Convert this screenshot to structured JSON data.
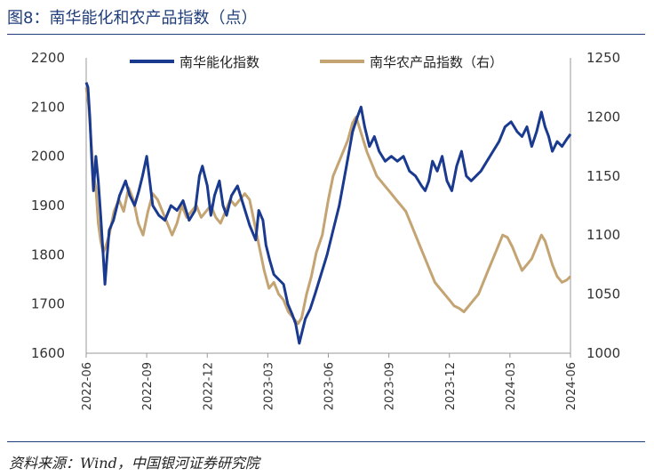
{
  "header": {
    "title": "图8：南华能化和农产品指数（点）"
  },
  "footer": {
    "source": "资料来源：Wind，中国银河证券研究院"
  },
  "colors": {
    "energy": "#1a3a8f",
    "agri": "#c4a473",
    "rule": "#1f3d7a"
  },
  "chart_data": {
    "type": "line",
    "title": "图8：南华能化和农产品指数（点）",
    "x_ticks": [
      "2022-06",
      "2022-09",
      "2022-12",
      "2023-03",
      "2023-06",
      "2023-09",
      "2023-12",
      "2024-03",
      "2024-06"
    ],
    "y_left": {
      "min": 1600,
      "max": 2200,
      "ticks": [
        "2200",
        "2100",
        "2000",
        "1900",
        "1800",
        "1700",
        "1600"
      ]
    },
    "y_right": {
      "min": 1000,
      "max": 1250,
      "ticks": [
        "1250",
        "1200",
        "1150",
        "1100",
        "1050",
        "1000"
      ]
    },
    "legend": [
      "南华能化指数",
      "南华农产品指数（右）"
    ],
    "series": [
      {
        "name": "南华能化指数",
        "axis": "left",
        "points": [
          [
            0,
            2150
          ],
          [
            0.03,
            2140
          ],
          [
            0.06,
            2080
          ],
          [
            0.09,
            2000
          ],
          [
            0.12,
            1930
          ],
          [
            0.16,
            2000
          ],
          [
            0.2,
            1950
          ],
          [
            0.24,
            1880
          ],
          [
            0.28,
            1800
          ],
          [
            0.31,
            1740
          ],
          [
            0.34,
            1790
          ],
          [
            0.38,
            1850
          ],
          [
            0.45,
            1870
          ],
          [
            0.55,
            1920
          ],
          [
            0.65,
            1950
          ],
          [
            0.72,
            1920
          ],
          [
            0.8,
            1900
          ],
          [
            0.87,
            1930
          ],
          [
            0.93,
            1960
          ],
          [
            1.0,
            2000
          ],
          [
            1.05,
            1950
          ],
          [
            1.1,
            1900
          ],
          [
            1.2,
            1880
          ],
          [
            1.3,
            1870
          ],
          [
            1.4,
            1900
          ],
          [
            1.5,
            1890
          ],
          [
            1.6,
            1910
          ],
          [
            1.7,
            1870
          ],
          [
            1.8,
            1890
          ],
          [
            1.87,
            1960
          ],
          [
            1.92,
            1980
          ],
          [
            1.96,
            1960
          ],
          [
            2.0,
            1940
          ],
          [
            2.06,
            1880
          ],
          [
            2.12,
            1920
          ],
          [
            2.2,
            1950
          ],
          [
            2.26,
            1900
          ],
          [
            2.32,
            1880
          ],
          [
            2.4,
            1920
          ],
          [
            2.5,
            1940
          ],
          [
            2.6,
            1900
          ],
          [
            2.7,
            1860
          ],
          [
            2.8,
            1830
          ],
          [
            2.85,
            1890
          ],
          [
            2.92,
            1870
          ],
          [
            2.97,
            1820
          ],
          [
            3.03,
            1790
          ],
          [
            3.1,
            1760
          ],
          [
            3.18,
            1750
          ],
          [
            3.26,
            1740
          ],
          [
            3.33,
            1700
          ],
          [
            3.4,
            1680
          ],
          [
            3.46,
            1660
          ],
          [
            3.52,
            1620
          ],
          [
            3.56,
            1640
          ],
          [
            3.62,
            1670
          ],
          [
            3.7,
            1690
          ],
          [
            3.78,
            1720
          ],
          [
            3.88,
            1760
          ],
          [
            3.98,
            1800
          ],
          [
            4.08,
            1850
          ],
          [
            4.18,
            1900
          ],
          [
            4.3,
            1980
          ],
          [
            4.4,
            2050
          ],
          [
            4.48,
            2080
          ],
          [
            4.54,
            2100
          ],
          [
            4.6,
            2060
          ],
          [
            4.68,
            2020
          ],
          [
            4.76,
            2040
          ],
          [
            4.84,
            2010
          ],
          [
            4.94,
            1990
          ],
          [
            5.04,
            2000
          ],
          [
            5.14,
            1990
          ],
          [
            5.24,
            2000
          ],
          [
            5.34,
            1970
          ],
          [
            5.44,
            1960
          ],
          [
            5.54,
            1940
          ],
          [
            5.6,
            1930
          ],
          [
            5.66,
            1950
          ],
          [
            5.72,
            1990
          ],
          [
            5.8,
            1970
          ],
          [
            5.88,
            2000
          ],
          [
            5.96,
            1950
          ],
          [
            6.04,
            1930
          ],
          [
            6.12,
            1980
          ],
          [
            6.2,
            2010
          ],
          [
            6.28,
            1960
          ],
          [
            6.36,
            1950
          ],
          [
            6.44,
            1960
          ],
          [
            6.52,
            1970
          ],
          [
            6.62,
            1990
          ],
          [
            6.72,
            2010
          ],
          [
            6.82,
            2030
          ],
          [
            6.92,
            2060
          ],
          [
            7.02,
            2070
          ],
          [
            7.12,
            2050
          ],
          [
            7.2,
            2040
          ],
          [
            7.28,
            2060
          ],
          [
            7.36,
            2020
          ],
          [
            7.44,
            2050
          ],
          [
            7.52,
            2090
          ],
          [
            7.58,
            2060
          ],
          [
            7.64,
            2040
          ],
          [
            7.7,
            2010
          ],
          [
            7.78,
            2030
          ],
          [
            7.86,
            2020
          ],
          [
            7.94,
            2035
          ],
          [
            8.0,
            2045
          ]
        ]
      },
      {
        "name": "南华农产品指数（右）",
        "axis": "right",
        "points": [
          [
            0,
            1225
          ],
          [
            0.04,
            1210
          ],
          [
            0.08,
            1180
          ],
          [
            0.12,
            1150
          ],
          [
            0.16,
            1140
          ],
          [
            0.2,
            1110
          ],
          [
            0.24,
            1095
          ],
          [
            0.28,
            1085
          ],
          [
            0.32,
            1090
          ],
          [
            0.38,
            1100
          ],
          [
            0.46,
            1120
          ],
          [
            0.54,
            1130
          ],
          [
            0.62,
            1120
          ],
          [
            0.7,
            1140
          ],
          [
            0.78,
            1130
          ],
          [
            0.86,
            1110
          ],
          [
            0.94,
            1100
          ],
          [
            1.02,
            1120
          ],
          [
            1.1,
            1135
          ],
          [
            1.18,
            1130
          ],
          [
            1.26,
            1120
          ],
          [
            1.34,
            1110
          ],
          [
            1.42,
            1100
          ],
          [
            1.5,
            1110
          ],
          [
            1.58,
            1125
          ],
          [
            1.66,
            1115
          ],
          [
            1.74,
            1120
          ],
          [
            1.82,
            1125
          ],
          [
            1.9,
            1115
          ],
          [
            1.98,
            1120
          ],
          [
            2.06,
            1125
          ],
          [
            2.14,
            1115
          ],
          [
            2.22,
            1110
          ],
          [
            2.3,
            1120
          ],
          [
            2.38,
            1130
          ],
          [
            2.46,
            1125
          ],
          [
            2.54,
            1130
          ],
          [
            2.62,
            1135
          ],
          [
            2.7,
            1130
          ],
          [
            2.78,
            1110
          ],
          [
            2.86,
            1090
          ],
          [
            2.94,
            1070
          ],
          [
            3.02,
            1055
          ],
          [
            3.1,
            1060
          ],
          [
            3.18,
            1050
          ],
          [
            3.26,
            1045
          ],
          [
            3.34,
            1035
          ],
          [
            3.42,
            1030
          ],
          [
            3.5,
            1025
          ],
          [
            3.56,
            1030
          ],
          [
            3.64,
            1050
          ],
          [
            3.72,
            1065
          ],
          [
            3.8,
            1085
          ],
          [
            3.9,
            1100
          ],
          [
            4.0,
            1130
          ],
          [
            4.08,
            1150
          ],
          [
            4.16,
            1160
          ],
          [
            4.24,
            1170
          ],
          [
            4.32,
            1180
          ],
          [
            4.4,
            1195
          ],
          [
            4.46,
            1200
          ],
          [
            4.52,
            1190
          ],
          [
            4.58,
            1180
          ],
          [
            4.64,
            1170
          ],
          [
            4.72,
            1160
          ],
          [
            4.8,
            1150
          ],
          [
            4.88,
            1145
          ],
          [
            4.96,
            1140
          ],
          [
            5.04,
            1135
          ],
          [
            5.12,
            1130
          ],
          [
            5.2,
            1125
          ],
          [
            5.28,
            1120
          ],
          [
            5.36,
            1110
          ],
          [
            5.44,
            1100
          ],
          [
            5.52,
            1090
          ],
          [
            5.6,
            1080
          ],
          [
            5.68,
            1070
          ],
          [
            5.76,
            1060
          ],
          [
            5.84,
            1055
          ],
          [
            5.92,
            1050
          ],
          [
            6.0,
            1045
          ],
          [
            6.08,
            1040
          ],
          [
            6.16,
            1038
          ],
          [
            6.24,
            1035
          ],
          [
            6.32,
            1040
          ],
          [
            6.4,
            1045
          ],
          [
            6.48,
            1050
          ],
          [
            6.56,
            1060
          ],
          [
            6.64,
            1070
          ],
          [
            6.72,
            1080
          ],
          [
            6.8,
            1090
          ],
          [
            6.88,
            1100
          ],
          [
            6.96,
            1098
          ],
          [
            7.04,
            1090
          ],
          [
            7.12,
            1080
          ],
          [
            7.2,
            1070
          ],
          [
            7.28,
            1075
          ],
          [
            7.36,
            1080
          ],
          [
            7.44,
            1090
          ],
          [
            7.52,
            1100
          ],
          [
            7.58,
            1095
          ],
          [
            7.64,
            1085
          ],
          [
            7.7,
            1075
          ],
          [
            7.78,
            1065
          ],
          [
            7.86,
            1060
          ],
          [
            7.94,
            1062
          ],
          [
            8.0,
            1065
          ]
        ]
      }
    ]
  }
}
